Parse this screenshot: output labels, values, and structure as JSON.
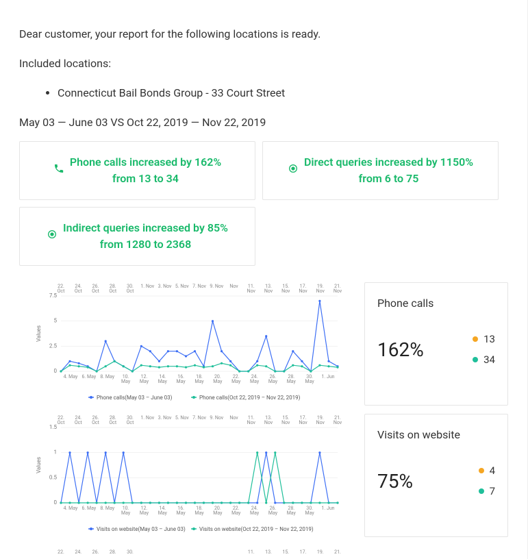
{
  "intro": {
    "greeting": "Dear customer, your report for the following locations is ready.",
    "included_label": "Included locations:",
    "locations": [
      "Connecticut Bail Bonds Group - 33 Court Street"
    ],
    "date_range": "May 03 — June 03 VS Oct 22, 2019 — Nov 22, 2019"
  },
  "metric_cards": [
    {
      "icon": "phone",
      "line1": "Phone calls increased by 162%",
      "line2": "from 13 to 34"
    },
    {
      "icon": "target",
      "line1": "Direct queries increased by 1150%",
      "line2": "from 6 to 75"
    },
    {
      "icon": "target",
      "line1": "Indirect queries increased by 85%",
      "line2": "from 1280 to 2368"
    }
  ],
  "colors": {
    "green": "#18b96a",
    "series_blue": "#3d6ff5",
    "series_teal": "#1fbf9a",
    "legend_orange": "#f5a623",
    "grid": "#e6e6e6",
    "axis_text": "#888888"
  },
  "charts": [
    {
      "id": "phone-calls",
      "ylim": [
        0,
        7.5
      ],
      "yticks": [
        0,
        2.5,
        5,
        7.5
      ],
      "ylabel": "Values",
      "top_labels": [
        "22.\nOct",
        "24.\nOct",
        "26.\nOct",
        "28.\nOct",
        "30.\nOct",
        "1. Nov",
        "3. Nov",
        "5. Nov",
        "7. Nov",
        "9. Nov",
        "Nov",
        "11.\nNov",
        "13.\nNov",
        "15.\nNov",
        "17.\nNov",
        "19.\nNov",
        "21.\nNov"
      ],
      "bottom_labels": [
        "4. May",
        "6. May",
        "8. May",
        "10.\nMay",
        "12.\nMay",
        "14.\nMay",
        "16.\nMay",
        "18.\nMay",
        "20.\nMay",
        "22.\nMay",
        "24.\nMay",
        "26.\nMay",
        "28.\nMay",
        "30.\nMay",
        "1. Jun"
      ],
      "series_a": {
        "label": "Phone calls(May 03 – June 03)",
        "color": "#3d6ff5",
        "values": [
          0,
          1,
          0.8,
          0.5,
          0,
          3,
          1,
          0.5,
          0,
          2.5,
          2,
          1,
          2,
          2,
          1.5,
          2,
          0.5,
          5,
          2,
          1,
          0,
          0,
          1,
          3.5,
          0,
          0,
          2,
          1,
          0,
          7,
          1,
          0.5
        ]
      },
      "series_b": {
        "label": "Phone calls(Oct 22, 2019 – Nov 22, 2019)",
        "color": "#1fbf9a",
        "values": [
          0,
          0.6,
          0.5,
          0.4,
          0,
          0.5,
          1,
          0.5,
          0,
          0.6,
          0.5,
          0.4,
          0.5,
          0.5,
          0.4,
          0.6,
          0.4,
          0.5,
          0.8,
          0.6,
          0,
          0,
          0.6,
          0.5,
          0,
          0,
          0.6,
          0.5,
          0,
          0.6,
          0.5,
          0.4
        ]
      },
      "stat": {
        "title": "Phone calls",
        "percent": "162%",
        "legend": [
          {
            "color": "#f5a623",
            "value": "13"
          },
          {
            "color": "#1fbf9a",
            "value": "34"
          }
        ]
      }
    },
    {
      "id": "visits-website",
      "ylim": [
        0,
        1.5
      ],
      "yticks": [
        0,
        0.5,
        1,
        1.5
      ],
      "ylabel": "Values",
      "top_labels": [
        "22.\nOct",
        "24.\nOct",
        "26.\nOct",
        "28.\nOct",
        "30.\nOct",
        "1. Nov",
        "3. Nov",
        "5. Nov",
        "7. Nov",
        "9. Nov",
        "Nov",
        "11.\nNov",
        "13.\nNov",
        "15.\nNov",
        "17.\nNov",
        "19.\nNov",
        "21.\nNov"
      ],
      "bottom_labels": [
        "4. May",
        "6. May",
        "8. May",
        "10.\nMay",
        "12.\nMay",
        "14.\nMay",
        "16.\nMay",
        "18.\nMay",
        "20.\nMay",
        "22.\nMay",
        "24.\nMay",
        "26.\nMay",
        "28.\nMay",
        "30.\nMay",
        "1. Jun"
      ],
      "series_a": {
        "label": "Visits on website(May 03 – June 03)",
        "color": "#3d6ff5",
        "values": [
          0,
          1,
          0,
          1,
          0,
          1,
          0,
          1,
          0,
          0,
          0,
          0,
          0,
          0,
          0,
          0,
          0,
          0,
          0,
          0,
          0,
          0,
          0,
          1,
          0,
          0,
          0,
          0,
          0,
          1,
          0,
          0
        ]
      },
      "series_b": {
        "label": "Visits on website(Oct 22, 2019 – Nov 22, 2019)",
        "color": "#1fbf9a",
        "values": [
          0,
          0,
          0,
          0,
          0,
          0,
          0,
          0,
          0,
          0,
          0,
          0,
          0,
          0,
          0,
          0,
          0,
          0,
          0,
          0,
          0,
          0,
          1,
          0,
          1,
          0,
          0,
          0,
          0,
          0,
          0,
          0
        ]
      },
      "stat": {
        "title": "Visits on website",
        "percent": "75%",
        "legend": [
          {
            "color": "#f5a623",
            "value": "4"
          },
          {
            "color": "#1fbf9a",
            "value": "7"
          }
        ]
      }
    }
  ],
  "partial_chart_labels": [
    "22.",
    "24.",
    "26.",
    "28.",
    "30.",
    "",
    "",
    "",
    "",
    "",
    "",
    "11.",
    "13.",
    "15.",
    "17.",
    "19.",
    "21."
  ]
}
